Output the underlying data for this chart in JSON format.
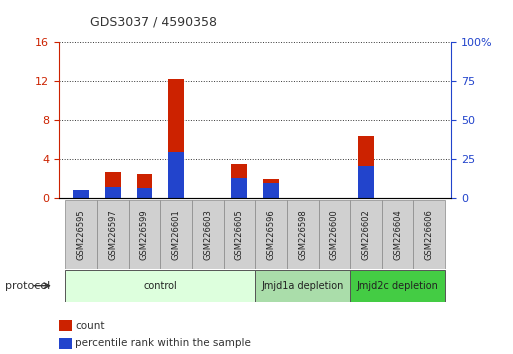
{
  "title": "GDS3037 / 4590358",
  "samples": [
    "GSM226595",
    "GSM226597",
    "GSM226599",
    "GSM226601",
    "GSM226603",
    "GSM226605",
    "GSM226596",
    "GSM226598",
    "GSM226600",
    "GSM226602",
    "GSM226604",
    "GSM226606"
  ],
  "count_values": [
    0.15,
    2.7,
    2.5,
    12.2,
    0.05,
    3.5,
    2.0,
    0.05,
    0.05,
    6.4,
    0.05,
    0.05
  ],
  "percentile_values": [
    5.0,
    7.5,
    6.5,
    30.0,
    0.3,
    13.0,
    9.5,
    0.3,
    0.3,
    21.0,
    0.3,
    0.3
  ],
  "left_ylim": [
    0,
    16
  ],
  "right_ylim": [
    0,
    100
  ],
  "left_yticks": [
    0,
    4,
    8,
    12,
    16
  ],
  "right_yticks": [
    0,
    25,
    50,
    75,
    100
  ],
  "right_yticklabels": [
    "0",
    "25",
    "50",
    "75",
    "100%"
  ],
  "color_count": "#cc2200",
  "color_percentile": "#2244cc",
  "groups": [
    {
      "label": "control",
      "start": 0,
      "end": 6,
      "color": "#ddffdd"
    },
    {
      "label": "Jmjd1a depletion",
      "start": 6,
      "end": 9,
      "color": "#aaddaa"
    },
    {
      "label": "Jmjd2c depletion",
      "start": 9,
      "end": 12,
      "color": "#44cc44"
    }
  ],
  "protocol_label": "protocol",
  "legend_count": "count",
  "legend_percentile": "percentile rank within the sample",
  "bar_width": 0.5,
  "background_color": "#ffffff",
  "plot_bg_color": "#ffffff",
  "left_tick_color": "#cc2200",
  "right_tick_color": "#2244cc",
  "grid_color": "#333333"
}
